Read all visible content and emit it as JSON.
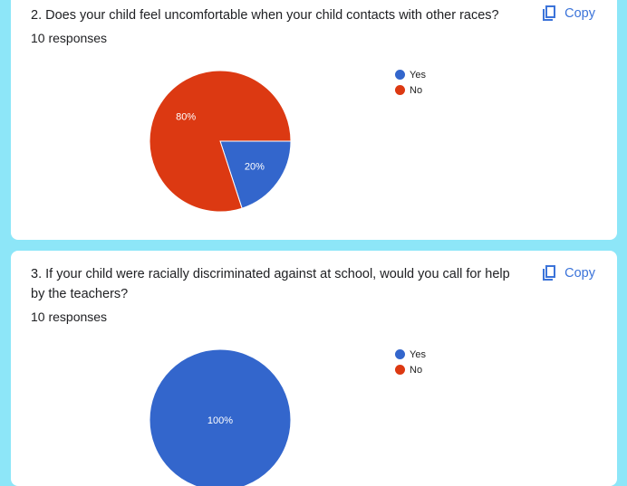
{
  "questions": [
    {
      "title": "2. Does your child feel uncomfortable when your child contacts with other races?",
      "responses": "10 responses",
      "copy_label": "Copy"
    },
    {
      "title": "3. If your child were racially discriminated against at school, would you call for help by the teachers?",
      "responses": "10 responses",
      "copy_label": "Copy"
    }
  ],
  "colors": {
    "yes": "#3366cc",
    "no": "#dc3912",
    "copy": "#3b73d9"
  },
  "chart_data": [
    {
      "type": "pie",
      "categories": [
        "Yes",
        "No"
      ],
      "values": [
        20,
        80
      ],
      "labels": [
        "20%",
        "80%"
      ],
      "colors": [
        "#3366cc",
        "#dc3912"
      ],
      "legend": [
        "Yes",
        "No"
      ],
      "legend_position": "right"
    },
    {
      "type": "pie",
      "categories": [
        "Yes",
        "No"
      ],
      "values": [
        100,
        0
      ],
      "labels": [
        "100%",
        ""
      ],
      "colors": [
        "#3366cc",
        "#dc3912"
      ],
      "legend": [
        "Yes",
        "No"
      ],
      "legend_position": "right"
    }
  ]
}
